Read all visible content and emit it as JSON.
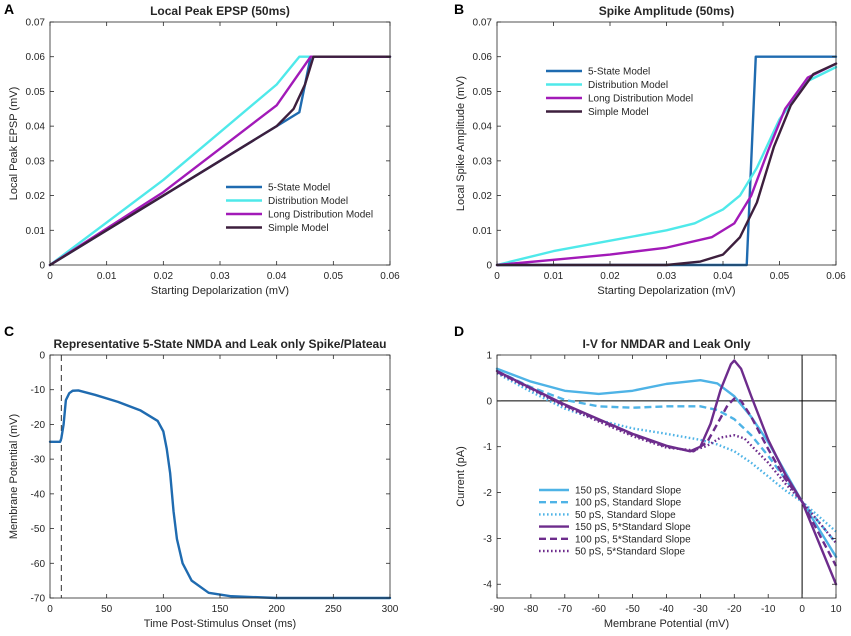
{
  "figure_title": "Four-panel figure: local peak EPSP, spike amplitude, 5-state spike/plateau and I-V curves",
  "chart_data": [
    {
      "panel": "A",
      "type": "line",
      "title": "Local Peak EPSP (50ms)",
      "xlabel": "Starting Depolarization (mV)",
      "ylabel": "Local Peak EPSP (mV)",
      "xlim": [
        0,
        0.06
      ],
      "ylim": [
        0,
        0.07
      ],
      "xticks": [
        0,
        0.01,
        0.02,
        0.03,
        0.04,
        0.05,
        0.06
      ],
      "xtick_labels": [
        "0",
        "0.01",
        "0.02",
        "0.03",
        "0.04",
        "0.05",
        "0.06"
      ],
      "yticks": [
        0,
        0.01,
        0.02,
        0.03,
        0.04,
        0.05,
        0.06,
        0.07
      ],
      "ytick_labels": [
        "0",
        "0.01",
        "0.02",
        "0.03",
        "0.04",
        "0.05",
        "0.06",
        "0.07"
      ],
      "legend_position": "center-right",
      "series": [
        {
          "name": "5-State Model",
          "color": "#1f6bb0",
          "dash": "solid",
          "points": [
            [
              0,
              0
            ],
            [
              0.044,
              0.044
            ],
            [
              0.046,
              0.06
            ],
            [
              0.06,
              0.06
            ]
          ]
        },
        {
          "name": "Distribution Model",
          "color": "#4fe9ea",
          "dash": "solid",
          "points": [
            [
              0,
              0
            ],
            [
              0.02,
              0.0245
            ],
            [
              0.04,
              0.052
            ],
            [
              0.044,
              0.06
            ],
            [
              0.06,
              0.06
            ]
          ]
        },
        {
          "name": "Long Distribution Model",
          "color": "#a21ab8",
          "dash": "solid",
          "points": [
            [
              0,
              0
            ],
            [
              0.02,
              0.021
            ],
            [
              0.04,
              0.046
            ],
            [
              0.046,
              0.06
            ],
            [
              0.06,
              0.06
            ]
          ]
        },
        {
          "name": "Simple Model",
          "color": "#3d1f3d",
          "dash": "solid",
          "points": [
            [
              0,
              0
            ],
            [
              0.02,
              0.02
            ],
            [
              0.04,
              0.04
            ],
            [
              0.043,
              0.045
            ],
            [
              0.045,
              0.052
            ],
            [
              0.0465,
              0.06
            ],
            [
              0.06,
              0.06
            ]
          ]
        }
      ]
    },
    {
      "panel": "B",
      "type": "line",
      "title": "Spike Amplitude (50ms)",
      "xlabel": "Starting Depolarization (mV)",
      "ylabel": "Local Spike Amplitude (mV)",
      "xlim": [
        0,
        0.06
      ],
      "ylim": [
        0,
        0.07
      ],
      "xticks": [
        0,
        0.01,
        0.02,
        0.03,
        0.04,
        0.05,
        0.06
      ],
      "xtick_labels": [
        "0",
        "0.01",
        "0.02",
        "0.03",
        "0.04",
        "0.05",
        "0.06"
      ],
      "yticks": [
        0,
        0.01,
        0.02,
        0.03,
        0.04,
        0.05,
        0.06,
        0.07
      ],
      "ytick_labels": [
        "0",
        "0.01",
        "0.02",
        "0.03",
        "0.04",
        "0.05",
        "0.06",
        "0.07"
      ],
      "legend_position": "top-left",
      "series": [
        {
          "name": "5-State Model",
          "color": "#1f6bb0",
          "dash": "solid",
          "points": [
            [
              0,
              0
            ],
            [
              0.0442,
              0
            ],
            [
              0.0458,
              0.06
            ],
            [
              0.06,
              0.06
            ]
          ]
        },
        {
          "name": "Distribution Model",
          "color": "#4fe9ea",
          "dash": "solid",
          "points": [
            [
              0,
              0
            ],
            [
              0.01,
              0.004
            ],
            [
              0.02,
              0.007
            ],
            [
              0.03,
              0.01
            ],
            [
              0.035,
              0.012
            ],
            [
              0.04,
              0.016
            ],
            [
              0.043,
              0.02
            ],
            [
              0.046,
              0.028
            ],
            [
              0.05,
              0.042
            ],
            [
              0.055,
              0.053
            ],
            [
              0.06,
              0.057
            ]
          ]
        },
        {
          "name": "Long Distribution Model",
          "color": "#a21ab8",
          "dash": "solid",
          "points": [
            [
              0,
              0
            ],
            [
              0.01,
              0.0015
            ],
            [
              0.02,
              0.003
            ],
            [
              0.03,
              0.005
            ],
            [
              0.038,
              0.008
            ],
            [
              0.042,
              0.012
            ],
            [
              0.045,
              0.02
            ],
            [
              0.048,
              0.033
            ],
            [
              0.051,
              0.045
            ],
            [
              0.055,
              0.054
            ],
            [
              0.06,
              0.058
            ]
          ]
        },
        {
          "name": "Simple Model",
          "color": "#3d1f3d",
          "dash": "solid",
          "points": [
            [
              0,
              0
            ],
            [
              0.03,
              0
            ],
            [
              0.036,
              0.001
            ],
            [
              0.04,
              0.003
            ],
            [
              0.043,
              0.008
            ],
            [
              0.046,
              0.018
            ],
            [
              0.049,
              0.034
            ],
            [
              0.052,
              0.046
            ],
            [
              0.056,
              0.055
            ],
            [
              0.06,
              0.058
            ]
          ]
        }
      ]
    },
    {
      "panel": "C",
      "type": "line",
      "title": "Representative 5-State NMDA and Leak only Spike/Plateau",
      "xlabel": "Time Post-Stimulus Onset (ms)",
      "ylabel": "Membrane Potential (mV)",
      "xlim": [
        0,
        300
      ],
      "ylim": [
        -70,
        0
      ],
      "xticks": [
        0,
        50,
        100,
        150,
        200,
        250,
        300
      ],
      "xtick_labels": [
        "0",
        "50",
        "100",
        "150",
        "200",
        "250",
        "300"
      ],
      "yticks": [
        0,
        -10,
        -20,
        -30,
        -40,
        -50,
        -60,
        -70
      ],
      "ytick_labels": [
        "0",
        "-10",
        "-20",
        "-30",
        "-40",
        "-50",
        "-60",
        "-70"
      ],
      "stimulus_marker_x": 10,
      "series": [
        {
          "name": "Membrane potential",
          "color": "#1f6bb0",
          "dash": "solid",
          "points": [
            [
              0,
              -25
            ],
            [
              9,
              -25
            ],
            [
              10,
              -24
            ],
            [
              12,
              -20
            ],
            [
              14,
              -13
            ],
            [
              17,
              -11
            ],
            [
              20,
              -10.3
            ],
            [
              25,
              -10.2
            ],
            [
              40,
              -11.5
            ],
            [
              60,
              -13.5
            ],
            [
              80,
              -16
            ],
            [
              95,
              -19
            ],
            [
              100,
              -22
            ],
            [
              103,
              -27
            ],
            [
              106,
              -34
            ],
            [
              109,
              -45
            ],
            [
              112,
              -53
            ],
            [
              117,
              -60
            ],
            [
              125,
              -65
            ],
            [
              140,
              -68.5
            ],
            [
              160,
              -69.5
            ],
            [
              200,
              -70
            ],
            [
              300,
              -70
            ]
          ]
        }
      ]
    },
    {
      "panel": "D",
      "type": "line",
      "title": "I-V for NMDAR and Leak Only",
      "xlabel": "Membrane Potential (mV)",
      "ylabel": "Current (pA)",
      "xlim": [
        -90,
        10
      ],
      "ylim": [
        -4.3,
        1
      ],
      "xticks": [
        -90,
        -80,
        -70,
        -60,
        -50,
        -40,
        -30,
        -20,
        -10,
        0,
        10
      ],
      "xtick_labels": [
        "-90",
        "-80",
        "-70",
        "-60",
        "-50",
        "-40",
        "-30",
        "-20",
        "-10",
        "0",
        "10"
      ],
      "yticks": [
        1,
        0,
        -1,
        -2,
        -3,
        -4
      ],
      "ytick_labels": [
        "1",
        "0",
        "-1",
        "-2",
        "-3",
        "-4"
      ],
      "legend_position": "bottom-left",
      "series": [
        {
          "name": "150 pS,  Standard Slope",
          "color": "#4eb3e6",
          "dash": "solid",
          "points": [
            [
              -90,
              0.7
            ],
            [
              -80,
              0.42
            ],
            [
              -70,
              0.22
            ],
            [
              -60,
              0.15
            ],
            [
              -50,
              0.22
            ],
            [
              -40,
              0.37
            ],
            [
              -30,
              0.45
            ],
            [
              -25,
              0.38
            ],
            [
              -20,
              0.1
            ],
            [
              -15,
              -0.35
            ],
            [
              -10,
              -0.9
            ],
            [
              -5,
              -1.55
            ],
            [
              0,
              -2.2
            ],
            [
              10,
              -3.4
            ]
          ]
        },
        {
          "name": "100 pS,  Standard Slope",
          "color": "#4eb3e6",
          "dash": "dashed",
          "points": [
            [
              -90,
              0.65
            ],
            [
              -80,
              0.3
            ],
            [
              -70,
              0.02
            ],
            [
              -60,
              -0.12
            ],
            [
              -50,
              -0.15
            ],
            [
              -40,
              -0.12
            ],
            [
              -30,
              -0.12
            ],
            [
              -25,
              -0.2
            ],
            [
              -20,
              -0.4
            ],
            [
              -15,
              -0.75
            ],
            [
              -10,
              -1.2
            ],
            [
              -5,
              -1.7
            ],
            [
              0,
              -2.2
            ],
            [
              10,
              -3.1
            ]
          ]
        },
        {
          "name": "50  pS,  Standard Slope",
          "color": "#4eb3e6",
          "dash": "dotted",
          "points": [
            [
              -90,
              0.6
            ],
            [
              -80,
              0.2
            ],
            [
              -70,
              -0.17
            ],
            [
              -60,
              -0.42
            ],
            [
              -50,
              -0.6
            ],
            [
              -40,
              -0.72
            ],
            [
              -30,
              -0.85
            ],
            [
              -25,
              -0.95
            ],
            [
              -20,
              -1.1
            ],
            [
              -15,
              -1.35
            ],
            [
              -10,
              -1.65
            ],
            [
              -5,
              -1.95
            ],
            [
              0,
              -2.2
            ],
            [
              10,
              -2.85
            ]
          ]
        },
        {
          "name": "150 pS,  5*Standard Slope",
          "color": "#6d2c8c",
          "dash": "solid",
          "points": [
            [
              -90,
              0.65
            ],
            [
              -80,
              0.28
            ],
            [
              -70,
              -0.08
            ],
            [
              -60,
              -0.4
            ],
            [
              -50,
              -0.72
            ],
            [
              -40,
              -0.98
            ],
            [
              -33,
              -1.1
            ],
            [
              -30,
              -1.0
            ],
            [
              -27,
              -0.5
            ],
            [
              -24,
              0.25
            ],
            [
              -21,
              0.8
            ],
            [
              -20,
              0.88
            ],
            [
              -18,
              0.7
            ],
            [
              -15,
              0.1
            ],
            [
              -10,
              -0.85
            ],
            [
              -5,
              -1.6
            ],
            [
              0,
              -2.2
            ],
            [
              10,
              -4.0
            ]
          ]
        },
        {
          "name": "100 pS,  5*Standard Slope",
          "color": "#6d2c8c",
          "dash": "dashed",
          "points": [
            [
              -90,
              0.63
            ],
            [
              -80,
              0.27
            ],
            [
              -70,
              -0.1
            ],
            [
              -60,
              -0.42
            ],
            [
              -50,
              -0.74
            ],
            [
              -40,
              -1.0
            ],
            [
              -32,
              -1.1
            ],
            [
              -28,
              -0.9
            ],
            [
              -25,
              -0.5
            ],
            [
              -22,
              -0.1
            ],
            [
              -20,
              0.05
            ],
            [
              -18,
              0.0
            ],
            [
              -15,
              -0.35
            ],
            [
              -10,
              -1.05
            ],
            [
              -5,
              -1.7
            ],
            [
              0,
              -2.2
            ],
            [
              10,
              -3.6
            ]
          ]
        },
        {
          "name": "50  pS, 5*Standard Slope",
          "color": "#6d2c8c",
          "dash": "dotted",
          "points": [
            [
              -90,
              0.62
            ],
            [
              -80,
              0.26
            ],
            [
              -70,
              -0.12
            ],
            [
              -60,
              -0.45
            ],
            [
              -50,
              -0.77
            ],
            [
              -40,
              -1.02
            ],
            [
              -32,
              -1.08
            ],
            [
              -28,
              -0.98
            ],
            [
              -24,
              -0.8
            ],
            [
              -20,
              -0.75
            ],
            [
              -17,
              -0.82
            ],
            [
              -14,
              -1.05
            ],
            [
              -10,
              -1.35
            ],
            [
              -5,
              -1.8
            ],
            [
              0,
              -2.2
            ],
            [
              10,
              -3.1
            ]
          ]
        }
      ]
    }
  ]
}
